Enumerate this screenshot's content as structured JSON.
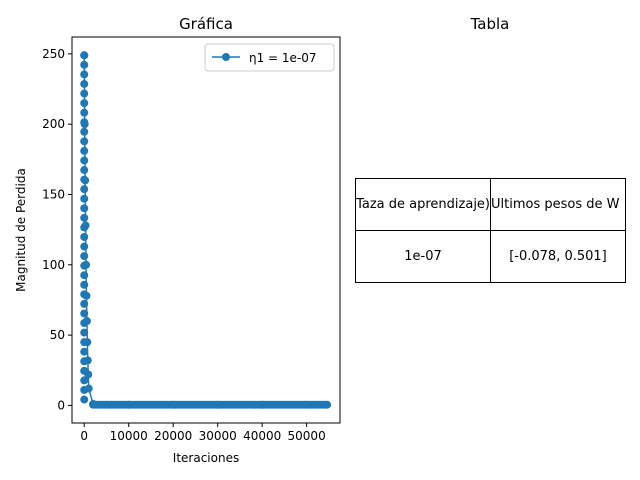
{
  "chart_data": [
    {
      "type": "line",
      "title": "Gráfica",
      "xlabel": "Iteraciones",
      "ylabel": "Magnitud de Perdida",
      "xlim": [
        -2750,
        57500
      ],
      "ylim": [
        -12.5,
        262
      ],
      "x_ticks": [
        0,
        10000,
        20000,
        30000,
        40000,
        50000
      ],
      "y_ticks": [
        0,
        50,
        100,
        150,
        200,
        250
      ],
      "legend_position": "top-right",
      "grid": false,
      "series": [
        {
          "name": "η1 = 1e-07",
          "color": "#1f77b4",
          "marker": "circle",
          "x": [
            0,
            100,
            200,
            300,
            400,
            500,
            600,
            700,
            800,
            900,
            1000,
            2000,
            5000,
            10000,
            20000,
            30000,
            40000,
            50000,
            54600
          ],
          "y": [
            249,
            200,
            160,
            128,
            100,
            78,
            60,
            45,
            32,
            22,
            12,
            1,
            0.5,
            0.5,
            0.5,
            0.5,
            0.5,
            0.5,
            0.5
          ]
        }
      ]
    },
    {
      "type": "table",
      "title": "Tabla",
      "columns": [
        "η (Taza de aprendizaje)",
        "Ultimos pesos de W"
      ],
      "rows": [
        [
          "1e-07",
          "[-0.078, 0.501]"
        ]
      ]
    }
  ]
}
